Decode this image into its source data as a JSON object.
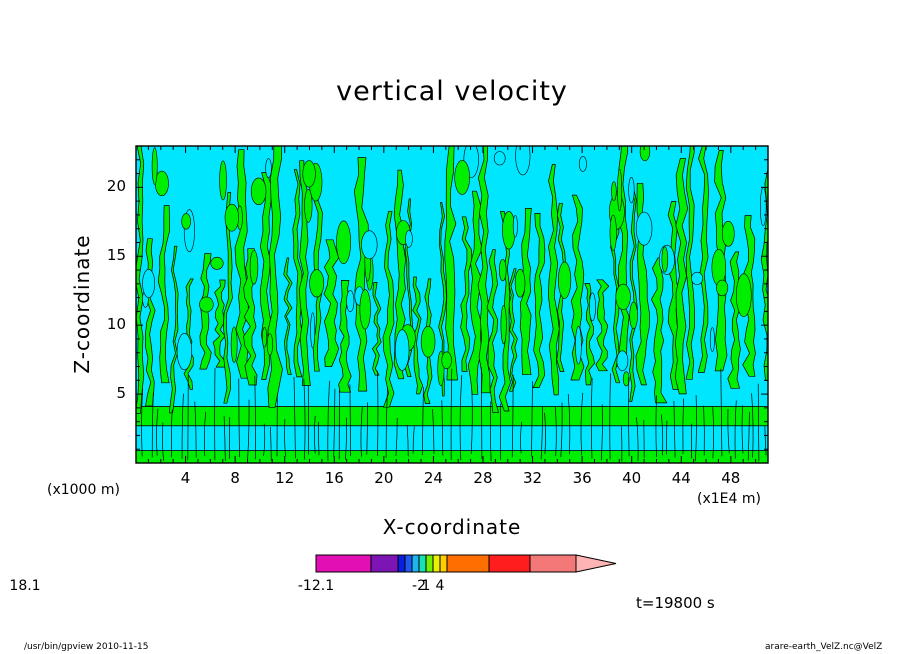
{
  "chart_data": {
    "type": "heatmap",
    "title": "vertical velocity",
    "xlabel": "X-coordinate",
    "ylabel": "Z-coordinate",
    "x_scale_label": "(x1000 m)",
    "x_scale_label_right": "(x1E4 m)",
    "xlim": [
      0,
      51
    ],
    "ylim": [
      0,
      23
    ],
    "x_ticks": [
      4,
      8,
      12,
      16,
      20,
      24,
      28,
      32,
      36,
      40,
      44,
      48
    ],
    "y_ticks": [
      5,
      10,
      15,
      20
    ],
    "time_label": "t=19800 s",
    "colorbar": {
      "labels": [
        {
          "text": "-12.1",
          "segment": 0
        },
        {
          "text": "-2",
          "segment": 5
        },
        {
          "text": "1",
          "segment": 6
        },
        {
          "text": "4",
          "segment": 8
        },
        {
          "text": "18.1",
          "segment": 13
        }
      ],
      "colors": [
        "#e10fb4",
        "#7d14b4",
        "#0a1ede",
        "#1e5af0",
        "#1eb4f0",
        "#19e1b4",
        "#73f000",
        "#e6f000",
        "#ffcd00",
        "#ff6e00",
        "#ff1e1e",
        "#f57878",
        "#ffb4b4"
      ]
    },
    "fill_colors": {
      "low": "#00e6ff",
      "high": "#00ef00"
    }
  },
  "footer": {
    "left": "/usr/bin/gpview   2010-11-15",
    "right": "arare-earth_VelZ.nc@VelZ"
  }
}
